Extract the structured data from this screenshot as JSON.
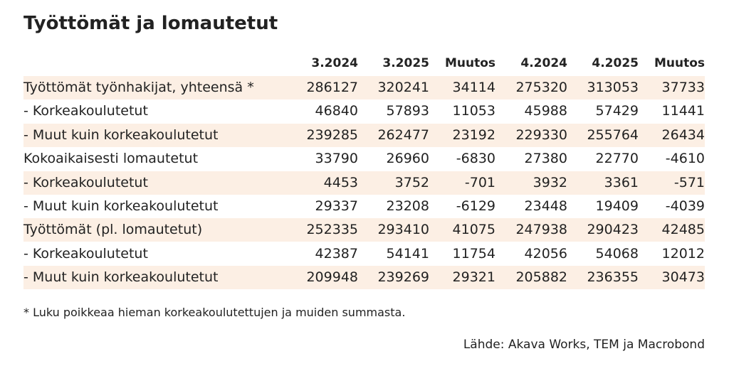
{
  "title": "Työttömät ja lomautetut",
  "table": {
    "header": [
      "3.2024",
      "3.2025",
      "Muutos",
      "4.2024",
      "4.2025",
      "Muutos"
    ],
    "rows": [
      [
        "Työttömät työnhakijat, yhteensä *",
        286127,
        320241,
        34114,
        275320,
        313053,
        37733
      ],
      [
        "- Korkeakoulutetut",
        46840,
        57893,
        11053,
        45988,
        57429,
        11441
      ],
      [
        "- Muut kuin korkeakoulutetut",
        239285,
        262477,
        23192,
        229330,
        255764,
        26434
      ],
      [
        "Kokoaikaisesti lomautetut",
        33790,
        26960,
        -6830,
        27380,
        22770,
        -4610
      ],
      [
        "- Korkeakoulutetut",
        4453,
        3752,
        -701,
        3932,
        3361,
        -571
      ],
      [
        "- Muut kuin korkeakoulutetut",
        29337,
        23208,
        -6129,
        23448,
        19409,
        -4039
      ],
      [
        "Työttömät (pl. lomautetut)",
        252335,
        293410,
        41075,
        247938,
        290423,
        42485
      ],
      [
        "- Korkeakoulutetut",
        42387,
        54141,
        11754,
        42056,
        54068,
        12012
      ],
      [
        "- Muut kuin korkeakoulutetut",
        209948,
        239269,
        29321,
        205882,
        236355,
        30473
      ]
    ]
  },
  "footnote": "* Luku poikkeaa hieman korkeakoulutettujen ja muiden summasta.",
  "source": "Lähde: Akava Works, TEM ja Macrobond"
}
